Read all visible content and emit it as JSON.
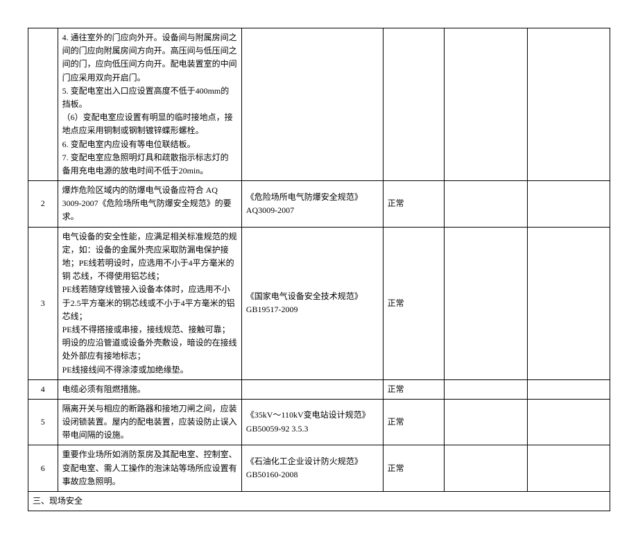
{
  "rows": [
    {
      "num": "",
      "desc": "4. 通往室外的门应向外开。设备间与附属房间之间的门应向附属房间方向开。高压间与低压间之间的门，应向低压间方向开。配电装置室的中间门应采用双向开启门。\n5. 变配电室出入口应设置高度不低于400mm的 挡板。\n（6）变配电室应设置有明显的临时接地点，接 地点应采用铜制或钢制镀锌蝶形螺栓。\n6. 变配电室内应设有等电位联结板。\n7. 变配电室应急照明灯具和疏散指示标志灯的 备用充电电源的放电时间不低于20min。",
      "ref": "",
      "status": ""
    },
    {
      "num": "2",
      "desc": "爆炸危险区域内的防爆电气设备应符合 AQ 3009-2007《危险场所电气防爆安全规范》的要求。",
      "ref": "《危险场所电气防爆安全规范》 AQ3009-2007",
      "status": "正常"
    },
    {
      "num": "3",
      "desc": "电气设备的安全性能，应满足相关标准规范的规定，如：设备的金属外壳应采取防漏电保护接地；PE线若明设时，应选用不小于4平方毫米的铜 芯线，不得使用铝芯线；\nPE线若随穿线管接入设备本体时，应选用不小于2.5平方毫米的铜芯线或不小于4平方毫米的铝 芯线；\nPE线不得搭接或串接，接线规范、接触可靠；明设的应沿管道或设备外壳敷设，暗设的在接线 处外部应有接地标志；\nPE线接线间不得涂漆或加绝缘垫。",
      "ref": "《国家电气设备安全技术规范》GB19517-2009",
      "status": "正常"
    },
    {
      "num": "4",
      "desc": "电缆必须有阻燃措施。",
      "ref": "",
      "status": "正常"
    },
    {
      "num": "5",
      "desc": "隔离开关与相应的断路器和接地刀闸之间，应装设闭锁装置。屋内的配电装置，应装设防止误入带电间隔的设施。",
      "ref": "《35kV～110kV变电站设计规范》GB50059-92 3.5.3",
      "status": "正常"
    },
    {
      "num": "6",
      "desc": "重要作业场所如消防泵房及其配电室、控制室、变配电室、需人工操作的泡沫站等场所应设置有事故应急照明。",
      "ref": "《石油化工企业设计防火规范》 GB50160-2008",
      "status": "正常"
    }
  ],
  "section": "三、现场安全"
}
